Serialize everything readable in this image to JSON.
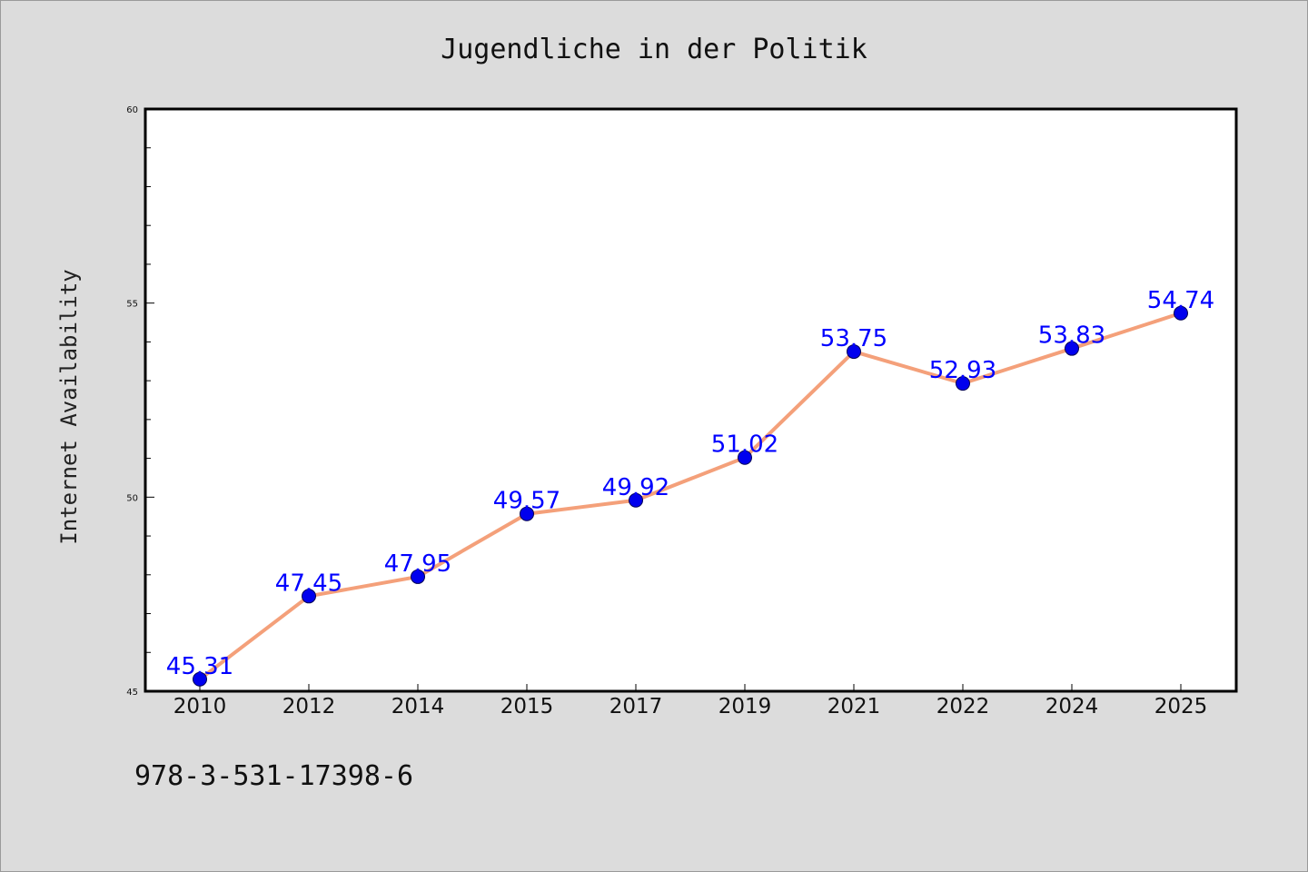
{
  "chart_data": {
    "type": "line",
    "title": "Jugendliche in der Politik",
    "ylabel": "Internet Availability",
    "xlabel": "",
    "categories": [
      "2010",
      "2012",
      "2014",
      "2015",
      "2017",
      "2019",
      "2021",
      "2022",
      "2024",
      "2025"
    ],
    "values": [
      45.31,
      47.45,
      47.95,
      49.57,
      49.92,
      51.02,
      53.75,
      52.93,
      53.83,
      54.74
    ],
    "data_labels": [
      "45.31",
      "47.45",
      "47.95",
      "49.57",
      "49.92",
      "51.02",
      "53.75",
      "52.93",
      "53.83",
      "54.74"
    ],
    "ylim": [
      45,
      60
    ],
    "yticks": [
      "45",
      "50",
      "55",
      "60"
    ],
    "grid": false,
    "legend": "none",
    "colors": {
      "line": "#f4a07a",
      "marker": "#0000ee",
      "label": "#0000ff",
      "background": "#dcdcdc",
      "plot_background": "#ffffff"
    }
  },
  "footer": {
    "isbn": "978-3-531-17398-6"
  }
}
